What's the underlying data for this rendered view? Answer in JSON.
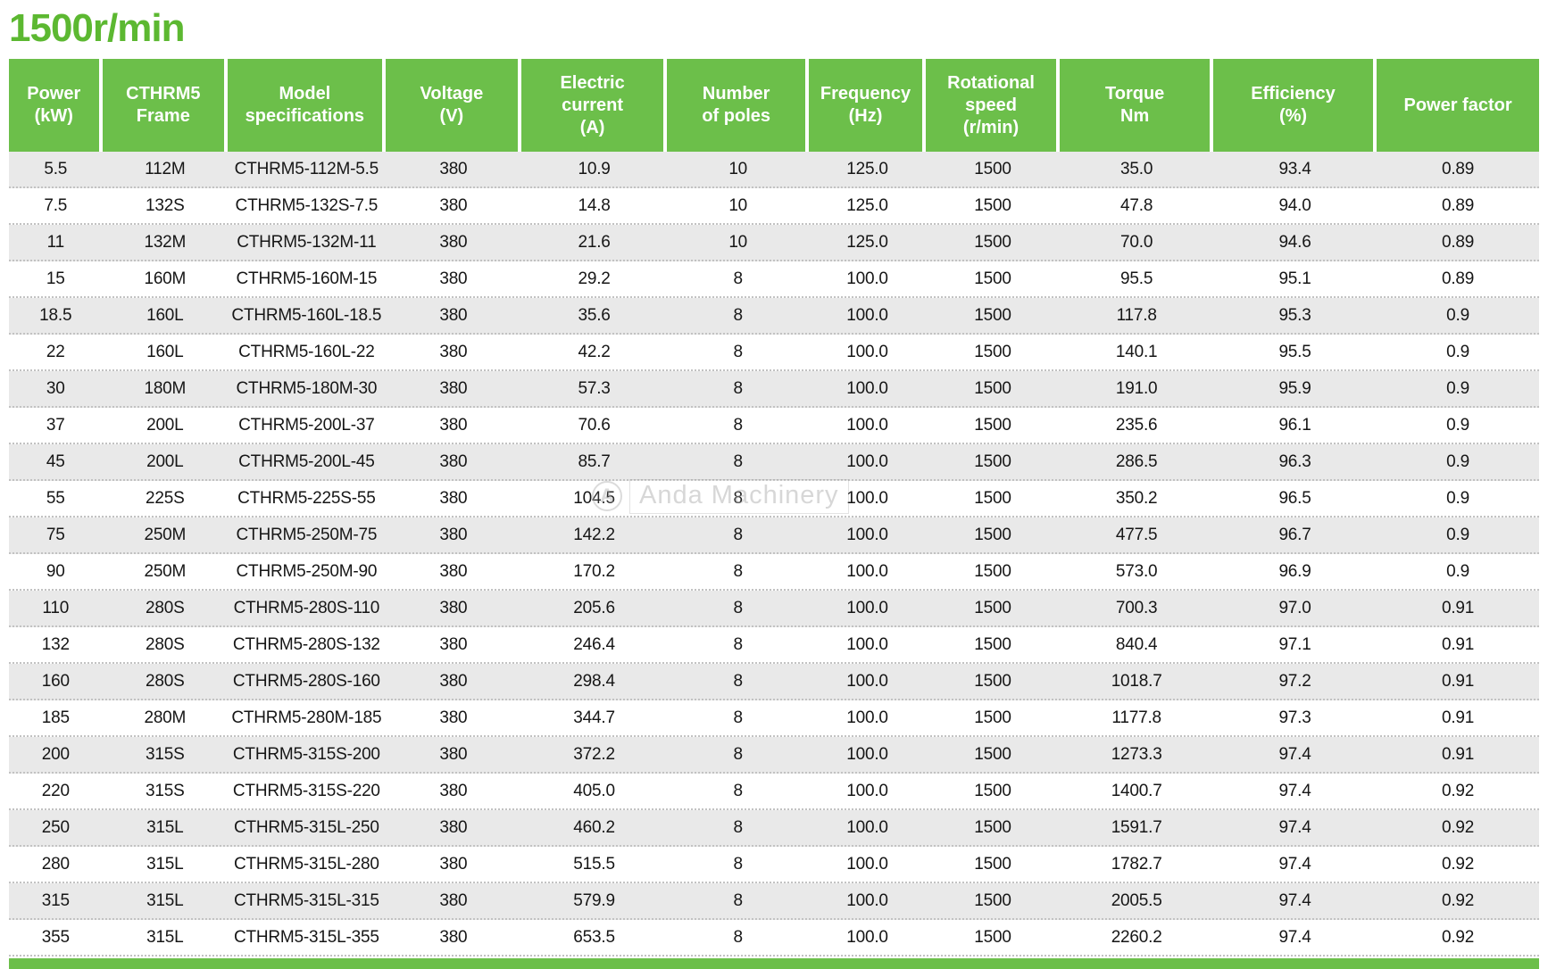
{
  "page_title": "1500r/min",
  "colors": {
    "title": "#5cb831",
    "header_bg": "#6cbf4a",
    "header_text": "#ffffff",
    "row_alt_bg": "#e9e9e9",
    "row_bg": "#ffffff",
    "cell_text": "#161616",
    "bottom_bar": "#6cbf4a"
  },
  "watermark": {
    "icon": "anda-logo-icon",
    "brand": "Anda Machinery"
  },
  "table": {
    "columns": [
      "Power\n(kW)",
      "CTHRM5\nFrame",
      "Model specifications",
      "Voltage\n(V)",
      "Electric\ncurrent\n(A)",
      "Number\nof poles",
      "Frequency\n(Hz)",
      "Rotational\nspeed\n(r/min)",
      "Torque\nNm",
      "Efficiency\n(%)",
      "Power factor"
    ],
    "rows": [
      [
        "5.5",
        "112M",
        "CTHRM5-112M-5.5",
        "380",
        "10.9",
        "10",
        "125.0",
        "1500",
        "35.0",
        "93.4",
        "0.89"
      ],
      [
        "7.5",
        "132S",
        "CTHRM5-132S-7.5",
        "380",
        "14.8",
        "10",
        "125.0",
        "1500",
        "47.8",
        "94.0",
        "0.89"
      ],
      [
        "11",
        "132M",
        "CTHRM5-132M-11",
        "380",
        "21.6",
        "10",
        "125.0",
        "1500",
        "70.0",
        "94.6",
        "0.89"
      ],
      [
        "15",
        "160M",
        "CTHRM5-160M-15",
        "380",
        "29.2",
        "8",
        "100.0",
        "1500",
        "95.5",
        "95.1",
        "0.89"
      ],
      [
        "18.5",
        "160L",
        "CTHRM5-160L-18.5",
        "380",
        "35.6",
        "8",
        "100.0",
        "1500",
        "117.8",
        "95.3",
        "0.9"
      ],
      [
        "22",
        "160L",
        "CTHRM5-160L-22",
        "380",
        "42.2",
        "8",
        "100.0",
        "1500",
        "140.1",
        "95.5",
        "0.9"
      ],
      [
        "30",
        "180M",
        "CTHRM5-180M-30",
        "380",
        "57.3",
        "8",
        "100.0",
        "1500",
        "191.0",
        "95.9",
        "0.9"
      ],
      [
        "37",
        "200L",
        "CTHRM5-200L-37",
        "380",
        "70.6",
        "8",
        "100.0",
        "1500",
        "235.6",
        "96.1",
        "0.9"
      ],
      [
        "45",
        "200L",
        "CTHRM5-200L-45",
        "380",
        "85.7",
        "8",
        "100.0",
        "1500",
        "286.5",
        "96.3",
        "0.9"
      ],
      [
        "55",
        "225S",
        "CTHRM5-225S-55",
        "380",
        "104.5",
        "8",
        "100.0",
        "1500",
        "350.2",
        "96.5",
        "0.9"
      ],
      [
        "75",
        "250M",
        "CTHRM5-250M-75",
        "380",
        "142.2",
        "8",
        "100.0",
        "1500",
        "477.5",
        "96.7",
        "0.9"
      ],
      [
        "90",
        "250M",
        "CTHRM5-250M-90",
        "380",
        "170.2",
        "8",
        "100.0",
        "1500",
        "573.0",
        "96.9",
        "0.9"
      ],
      [
        "110",
        "280S",
        "CTHRM5-280S-110",
        "380",
        "205.6",
        "8",
        "100.0",
        "1500",
        "700.3",
        "97.0",
        "0.91"
      ],
      [
        "132",
        "280S",
        "CTHRM5-280S-132",
        "380",
        "246.4",
        "8",
        "100.0",
        "1500",
        "840.4",
        "97.1",
        "0.91"
      ],
      [
        "160",
        "280S",
        "CTHRM5-280S-160",
        "380",
        "298.4",
        "8",
        "100.0",
        "1500",
        "1018.7",
        "97.2",
        "0.91"
      ],
      [
        "185",
        "280M",
        "CTHRM5-280M-185",
        "380",
        "344.7",
        "8",
        "100.0",
        "1500",
        "1177.8",
        "97.3",
        "0.91"
      ],
      [
        "200",
        "315S",
        "CTHRM5-315S-200",
        "380",
        "372.2",
        "8",
        "100.0",
        "1500",
        "1273.3",
        "97.4",
        "0.91"
      ],
      [
        "220",
        "315S",
        "CTHRM5-315S-220",
        "380",
        "405.0",
        "8",
        "100.0",
        "1500",
        "1400.7",
        "97.4",
        "0.92"
      ],
      [
        "250",
        "315L",
        "CTHRM5-315L-250",
        "380",
        "460.2",
        "8",
        "100.0",
        "1500",
        "1591.7",
        "97.4",
        "0.92"
      ],
      [
        "280",
        "315L",
        "CTHRM5-315L-280",
        "380",
        "515.5",
        "8",
        "100.0",
        "1500",
        "1782.7",
        "97.4",
        "0.92"
      ],
      [
        "315",
        "315L",
        "CTHRM5-315L-315",
        "380",
        "579.9",
        "8",
        "100.0",
        "1500",
        "2005.5",
        "97.4",
        "0.92"
      ],
      [
        "355",
        "315L",
        "CTHRM5-315L-355",
        "380",
        "653.5",
        "8",
        "100.0",
        "1500",
        "2260.2",
        "97.4",
        "0.92"
      ]
    ]
  }
}
